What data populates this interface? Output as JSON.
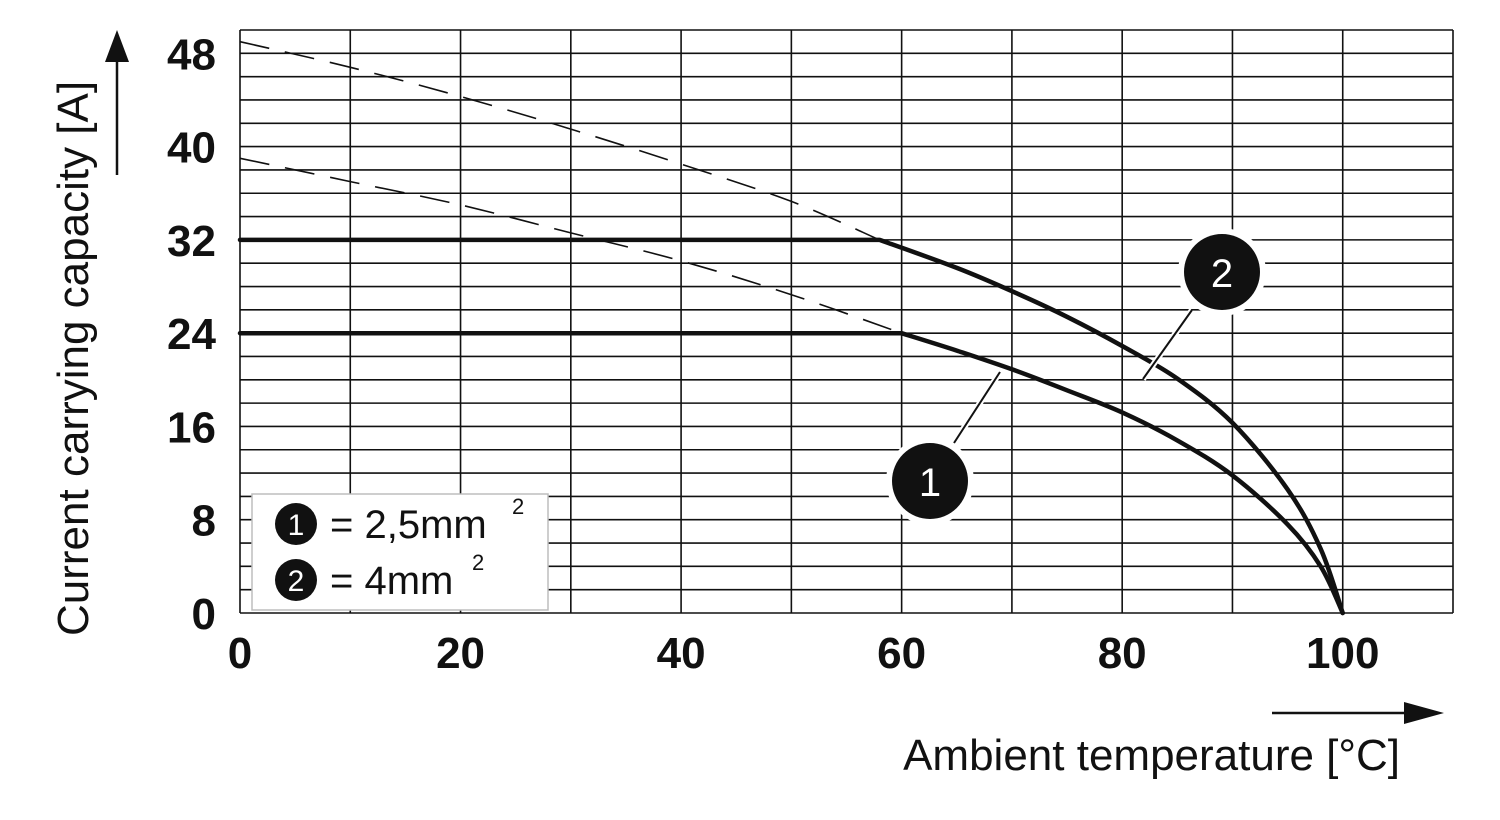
{
  "chart_data": {
    "type": "line",
    "xlabel": "Ambient temperature [°C]",
    "ylabel": "Current carrying capacity [A]",
    "xlim": [
      0,
      110
    ],
    "ylim": [
      0,
      50
    ],
    "x_ticks": [
      "0",
      "20",
      "40",
      "60",
      "80",
      "100"
    ],
    "y_ticks": [
      "0",
      "8",
      "16",
      "24",
      "32",
      "40",
      "48"
    ],
    "grid": true,
    "legend_position": "bottom-left",
    "legend": [
      {
        "badge": "1",
        "text": "= 2,5mm",
        "sup": "2"
      },
      {
        "badge": "2",
        "text": "= 4mm",
        "sup": "2"
      }
    ],
    "series": [
      {
        "badge": "1",
        "x": [
          0,
          10,
          20,
          30,
          40,
          50,
          60,
          65,
          70,
          75,
          80,
          85,
          90,
          95,
          98,
          100
        ],
        "y": [
          24,
          24,
          24,
          24,
          24,
          24,
          24,
          22.5,
          20.9,
          19.1,
          17.2,
          14.8,
          11.8,
          7.6,
          4.0,
          0
        ]
      },
      {
        "badge": "2",
        "x": [
          0,
          10,
          20,
          30,
          40,
          50,
          58,
          65,
          70,
          75,
          80,
          85,
          90,
          95,
          98,
          100
        ],
        "y": [
          32,
          32,
          32,
          32,
          32,
          32,
          32,
          29.6,
          27.6,
          25.4,
          22.9,
          20.1,
          16.3,
          10.6,
          5.5,
          0
        ]
      }
    ],
    "extrapolations": [
      {
        "badge": "1",
        "x": [
          0,
          10,
          20,
          30,
          40,
          50,
          60
        ],
        "y": [
          39,
          37,
          35,
          32.6,
          30.2,
          27.3,
          24
        ]
      },
      {
        "badge": "2",
        "x": [
          0,
          10,
          20,
          30,
          40,
          50,
          58
        ],
        "y": [
          49,
          46.8,
          44.3,
          41.5,
          38.5,
          35.3,
          32
        ]
      }
    ]
  }
}
